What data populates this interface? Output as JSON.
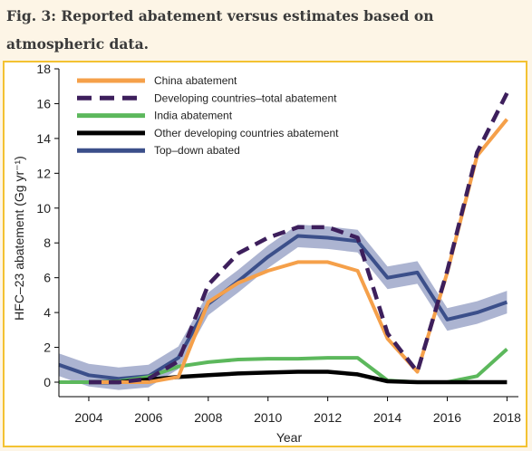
{
  "caption": "Fig. 3: Reported abatement versus estimates based on atmospheric data.",
  "chart_data": {
    "type": "line",
    "title": "",
    "xlabel": "Year",
    "ylabel": "HFC–23 abatement (Gg yr⁻¹)",
    "xlim": [
      2003,
      2018.2
    ],
    "ylim": [
      0,
      18
    ],
    "xticks": [
      2004,
      2006,
      2008,
      2010,
      2012,
      2014,
      2016,
      2018
    ],
    "yticks": [
      0,
      2,
      4,
      6,
      8,
      10,
      12,
      14,
      16,
      18
    ],
    "grid": false,
    "legend_position": "top-left",
    "series": [
      {
        "name": "China abatement",
        "color": "#f5a04a",
        "style": "solid",
        "points": [
          [
            2004,
            0
          ],
          [
            2005,
            0
          ],
          [
            2006,
            0
          ],
          [
            2007,
            0.3
          ],
          [
            2008,
            4.6
          ],
          [
            2009,
            5.7
          ],
          [
            2010,
            6.4
          ],
          [
            2011,
            6.9
          ],
          [
            2012,
            6.9
          ],
          [
            2013,
            6.4
          ],
          [
            2014,
            2.5
          ],
          [
            2015,
            0.6
          ],
          [
            2016,
            6.3
          ],
          [
            2017,
            13
          ],
          [
            2018,
            15.1
          ]
        ]
      },
      {
        "name": "Developing countries–total abatement",
        "color": "#3d1f5c",
        "style": "dashed",
        "points": [
          [
            2004,
            0
          ],
          [
            2005,
            0
          ],
          [
            2006,
            0.2
          ],
          [
            2007,
            1.2
          ],
          [
            2008,
            5.6
          ],
          [
            2009,
            7.4
          ],
          [
            2010,
            8.3
          ],
          [
            2011,
            8.9
          ],
          [
            2012,
            8.9
          ],
          [
            2013,
            8.3
          ],
          [
            2014,
            2.8
          ],
          [
            2015,
            0.6
          ],
          [
            2016,
            6.4
          ],
          [
            2017,
            13.2
          ],
          [
            2018,
            16.6
          ]
        ]
      },
      {
        "name": "India abatement",
        "color": "#5cb85c",
        "style": "solid",
        "points": [
          [
            2003,
            0
          ],
          [
            2004,
            0
          ],
          [
            2005,
            0.05
          ],
          [
            2006,
            0.3
          ],
          [
            2007,
            0.9
          ],
          [
            2008,
            1.15
          ],
          [
            2009,
            1.3
          ],
          [
            2010,
            1.35
          ],
          [
            2011,
            1.35
          ],
          [
            2012,
            1.4
          ],
          [
            2013,
            1.4
          ],
          [
            2014,
            0.1
          ],
          [
            2015,
            0
          ],
          [
            2016,
            0
          ],
          [
            2017,
            0.35
          ],
          [
            2018,
            1.9
          ]
        ]
      },
      {
        "name": "Other developing countries abatement",
        "color": "#000000",
        "style": "solid",
        "points": [
          [
            2004,
            0
          ],
          [
            2005,
            0
          ],
          [
            2006,
            0.15
          ],
          [
            2007,
            0.3
          ],
          [
            2008,
            0.4
          ],
          [
            2009,
            0.5
          ],
          [
            2010,
            0.55
          ],
          [
            2011,
            0.6
          ],
          [
            2012,
            0.6
          ],
          [
            2013,
            0.45
          ],
          [
            2014,
            0.05
          ],
          [
            2015,
            0
          ],
          [
            2016,
            0
          ],
          [
            2017,
            0
          ],
          [
            2018,
            0
          ]
        ]
      },
      {
        "name": "Top–down abated",
        "color": "#3b4f8a",
        "band_color": "#9ea7c9",
        "style": "solid",
        "points": [
          [
            2003,
            1.0
          ],
          [
            2004,
            0.4
          ],
          [
            2005,
            0.2
          ],
          [
            2006,
            0.35
          ],
          [
            2007,
            1.4
          ],
          [
            2008,
            4.5
          ],
          [
            2009,
            5.8
          ],
          [
            2010,
            7.2
          ],
          [
            2011,
            8.4
          ],
          [
            2012,
            8.3
          ],
          [
            2013,
            8.1
          ],
          [
            2014,
            6.0
          ],
          [
            2015,
            6.3
          ],
          [
            2016,
            3.6
          ],
          [
            2017,
            4.0
          ],
          [
            2018,
            4.6
          ]
        ],
        "band_halfwidth": 0.65
      }
    ]
  }
}
